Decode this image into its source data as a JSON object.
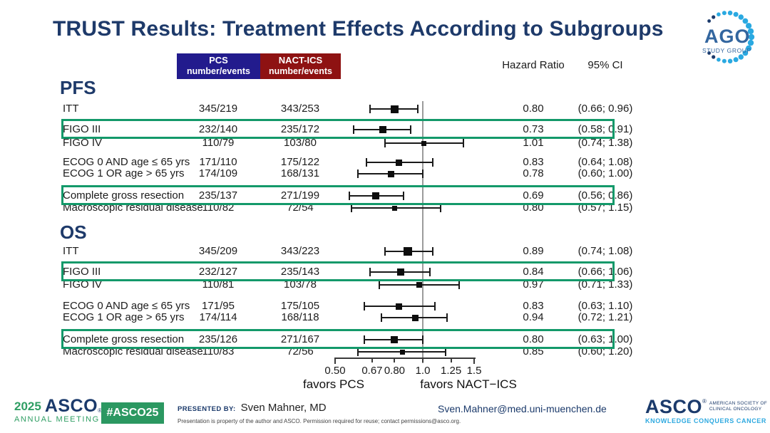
{
  "slide": {
    "title": "TRUST Results: Treatment Effects According to Subgroups"
  },
  "chart_data": {
    "type": "forest",
    "title": "TRUST Results: Treatment Effects According to Subgroups",
    "column_headers": {
      "pcs_line1": "PCS",
      "pcs_line2": "number/events",
      "nact_line1": "NACT-ICS",
      "nact_line2": "number/events",
      "hr": "Hazard Ratio",
      "ci": "95% CI"
    },
    "axis": {
      "scale": "log",
      "min": 0.5,
      "max": 1.5,
      "ref_line": 1.0,
      "ticks": [
        0.5,
        0.67,
        0.8,
        1.0,
        1.25,
        1.5
      ],
      "tick_labels": [
        "0.50",
        "0.67",
        "0.80",
        "1.0",
        "1.25",
        "1.5"
      ],
      "left_label": "favors PCS",
      "right_label": "favors NACT−ICS"
    },
    "sections": [
      {
        "name": "PFS",
        "rows": [
          {
            "label": "ITT",
            "pcs": "345/219",
            "nact": "343/253",
            "hr": 0.8,
            "lo": 0.66,
            "hi": 0.96,
            "hr_text": "0.80",
            "ci_text": "(0.66; 0.96)",
            "highlight": false,
            "w": 11
          },
          {
            "label": "FIGO III",
            "pcs": "232/140",
            "nact": "235/172",
            "hr": 0.73,
            "lo": 0.58,
            "hi": 0.91,
            "hr_text": "0.73",
            "ci_text": "(0.58; 0.91)",
            "highlight": true,
            "w": 10
          },
          {
            "label": "FIGO IV",
            "pcs": "110/79",
            "nact": "103/80",
            "hr": 1.01,
            "lo": 0.74,
            "hi": 1.38,
            "hr_text": "1.01",
            "ci_text": "(0.74; 1.38)",
            "highlight": false,
            "w": 7
          },
          {
            "label": "ECOG 0 AND age ≤ 65 yrs",
            "pcs": "171/110",
            "nact": "175/122",
            "hr": 0.83,
            "lo": 0.64,
            "hi": 1.08,
            "hr_text": "0.83",
            "ci_text": "(0.64; 1.08)",
            "highlight": false,
            "w": 9
          },
          {
            "label": "ECOG 1 OR age > 65 yrs",
            "pcs": "174/109",
            "nact": "168/131",
            "hr": 0.78,
            "lo": 0.6,
            "hi": 1.0,
            "hr_text": "0.78",
            "ci_text": "(0.60; 1.00)",
            "highlight": false,
            "w": 9
          },
          {
            "label": "Complete gross resection",
            "pcs": "235/137",
            "nact": "271/199",
            "hr": 0.69,
            "lo": 0.56,
            "hi": 0.86,
            "hr_text": "0.69",
            "ci_text": "(0.56; 0.86)",
            "highlight": true,
            "w": 10
          },
          {
            "label": "Macroscopic residual disease",
            "pcs": "110/82",
            "nact": "72/54",
            "hr": 0.8,
            "lo": 0.57,
            "hi": 1.15,
            "hr_text": "0.80",
            "ci_text": "(0.57; 1.15)",
            "highlight": false,
            "w": 7
          }
        ]
      },
      {
        "name": "OS",
        "rows": [
          {
            "label": "ITT",
            "pcs": "345/209",
            "nact": "343/223",
            "hr": 0.89,
            "lo": 0.74,
            "hi": 1.08,
            "hr_text": "0.89",
            "ci_text": "(0.74; 1.08)",
            "highlight": false,
            "w": 12
          },
          {
            "label": "FIGO III",
            "pcs": "232/127",
            "nact": "235/143",
            "hr": 0.84,
            "lo": 0.66,
            "hi": 1.06,
            "hr_text": "0.84",
            "ci_text": "(0.66; 1.06)",
            "highlight": true,
            "w": 10
          },
          {
            "label": "FIGO IV",
            "pcs": "110/81",
            "nact": "103/78",
            "hr": 0.97,
            "lo": 0.71,
            "hi": 1.33,
            "hr_text": "0.97",
            "ci_text": "(0.71; 1.33)",
            "highlight": false,
            "w": 8
          },
          {
            "label": "ECOG 0 AND age ≤ 65 yrs",
            "pcs": "171/95",
            "nact": "175/105",
            "hr": 0.83,
            "lo": 0.63,
            "hi": 1.1,
            "hr_text": "0.83",
            "ci_text": "(0.63; 1.10)",
            "highlight": false,
            "w": 9
          },
          {
            "label": "ECOG 1 OR age > 65 yrs",
            "pcs": "174/114",
            "nact": "168/118",
            "hr": 0.94,
            "lo": 0.72,
            "hi": 1.21,
            "hr_text": "0.94",
            "ci_text": "(0.72; 1.21)",
            "highlight": false,
            "w": 9
          },
          {
            "label": "Complete gross resection",
            "pcs": "235/126",
            "nact": "271/167",
            "hr": 0.8,
            "lo": 0.63,
            "hi": 1.0,
            "hr_text": "0.80",
            "ci_text": "(0.63; 1.00)",
            "highlight": true,
            "w": 10
          },
          {
            "label": "Macroscopic residual disease",
            "pcs": "110/83",
            "nact": "72/56",
            "hr": 0.85,
            "lo": 0.6,
            "hi": 1.2,
            "hr_text": "0.85",
            "ci_text": "(0.60; 1.20)",
            "highlight": false,
            "w": 7
          }
        ]
      }
    ]
  },
  "ago_logo": {
    "name": "AGO",
    "subtitle": "STUDY GROUP"
  },
  "footer": {
    "year": "2025",
    "asco": "ASCO",
    "reg_mark": "®",
    "annual_meeting": "ANNUAL MEETING",
    "hashtag": "#ASCO25",
    "presented_by_label": "PRESENTED BY:",
    "presenter": "Sven Mahner, MD",
    "disclaimer": "Presentation is property of the author and ASCO. Permission required for reuse; contact permissions@asco.org.",
    "email": "Sven.Mahner@med.uni-muenchen.de",
    "society_line1": "AMERICAN SOCIETY OF",
    "society_line2": "CLINICAL ONCOLOGY",
    "tagline": "KNOWLEDGE CONQUERS CANCER"
  },
  "colors": {
    "title_navy": "#1e3a6a",
    "pcs_header_blue": "#221b8d",
    "nact_header_red": "#8e1212",
    "highlight_green": "#13996a",
    "asco_green": "#2f9e63",
    "asco_navy": "#1b3a6b",
    "asco_lightblue": "#2ea9e0",
    "ago_blue": "#33669f",
    "ago_dot_blue": "#2aa9e1"
  }
}
